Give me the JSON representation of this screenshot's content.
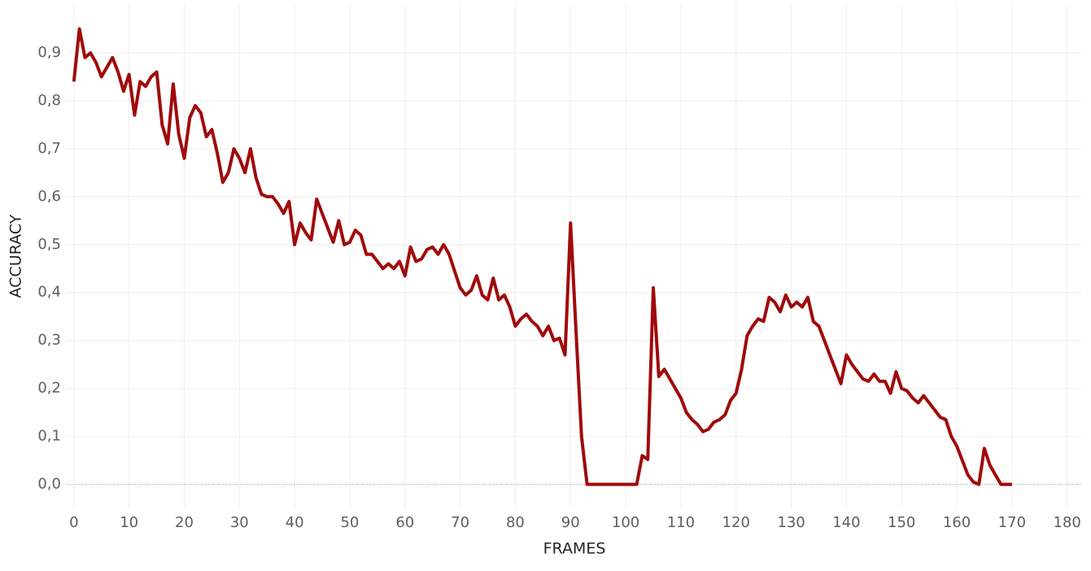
{
  "chart_data": {
    "type": "line",
    "xlabel": "FRAMES",
    "ylabel": "ACCURACY",
    "color": "#a00a0a",
    "grid": true,
    "values": [
      0.84,
      0.95,
      0.89,
      0.9,
      0.88,
      0.85,
      0.87,
      0.89,
      0.86,
      0.82,
      0.855,
      0.77,
      0.84,
      0.83,
      0.85,
      0.86,
      0.75,
      0.71,
      0.835,
      0.73,
      0.68,
      0.765,
      0.79,
      0.775,
      0.725,
      0.74,
      0.69,
      0.63,
      0.65,
      0.7,
      0.68,
      0.65,
      0.7,
      0.64,
      0.605,
      0.6,
      0.6,
      0.585,
      0.565,
      0.59,
      0.5,
      0.545,
      0.525,
      0.51,
      0.595,
      0.565,
      0.535,
      0.505,
      0.55,
      0.5,
      0.505,
      0.53,
      0.52,
      0.48,
      0.48,
      0.465,
      0.45,
      0.46,
      0.45,
      0.465,
      0.435,
      0.495,
      0.465,
      0.47,
      0.49,
      0.495,
      0.48,
      0.5,
      0.48,
      0.445,
      0.41,
      0.395,
      0.405,
      0.435,
      0.395,
      0.385,
      0.43,
      0.385,
      0.395,
      0.37,
      0.33,
      0.345,
      0.355,
      0.34,
      0.33,
      0.31,
      0.33,
      0.3,
      0.305,
      0.27,
      0.545,
      0.32,
      0.1,
      0,
      0,
      0,
      0,
      0,
      0,
      0,
      0,
      0,
      0,
      0.06,
      0.052,
      0.41,
      0.225,
      0.24,
      0.22,
      0.2,
      0.18,
      0.15,
      0.135,
      0.125,
      0.11,
      0.115,
      0.13,
      0.135,
      0.145,
      0.175,
      0.19,
      0.24,
      0.31,
      0.33,
      0.345,
      0.34,
      0.39,
      0.38,
      0.36,
      0.395,
      0.37,
      0.38,
      0.37,
      0.39,
      0.34,
      0.33,
      0.3,
      0.27,
      0.24,
      0.21,
      0.27,
      0.25,
      0.235,
      0.22,
      0.215,
      0.23,
      0.215,
      0.215,
      0.19,
      0.235,
      0.2,
      0.195,
      0.18,
      0.17,
      0.185,
      0.17,
      0.155,
      0.14,
      0.135,
      0.1,
      0.08,
      0.05,
      0.02,
      0.005,
      0,
      0.075,
      0.04,
      0.02,
      0,
      0,
      0
    ],
    "xlim": [
      -1.3,
      182.7
    ],
    "xticks": [
      0,
      10,
      20,
      30,
      40,
      50,
      60,
      70,
      80,
      90,
      100,
      110,
      120,
      130,
      140,
      150,
      160,
      170,
      180
    ],
    "ylim": [
      -0.05,
      1.0
    ],
    "yticks": [
      {
        "value": 0,
        "label": "0,0"
      },
      {
        "value": 0.1,
        "label": "0,1"
      },
      {
        "value": 0.2,
        "label": "0,2"
      },
      {
        "value": 0.3,
        "label": "0,3"
      },
      {
        "value": 0.4,
        "label": "0,4"
      },
      {
        "value": 0.5,
        "label": "0,5"
      },
      {
        "value": 0.6,
        "label": "0,6"
      },
      {
        "value": 0.7,
        "label": "0,7"
      },
      {
        "value": 0.8,
        "label": "0,8"
      },
      {
        "value": 0.9,
        "label": "0,9"
      }
    ]
  }
}
